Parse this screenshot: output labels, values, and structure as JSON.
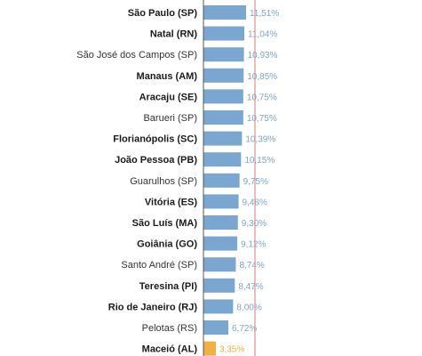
{
  "chart_data": {
    "type": "bar",
    "orientation": "horizontal",
    "categories": [
      "São Paulo (SP)",
      "Natal (RN)",
      "São José dos Campos (SP)",
      "Manaus (AM)",
      "Aracaju (SE)",
      "Barueri (SP)",
      "Florianópolis (SC)",
      "João Pessoa (PB)",
      "Guarulhos (SP)",
      "Vitória (ES)",
      "São Luís (MA)",
      "Goiânia (GO)",
      "Santo André (SP)",
      "Teresina (PI)",
      "Rio de Janeiro (RJ)",
      "Pelotas (RS)",
      "Maceió (AL)"
    ],
    "values": [
      11.51,
      11.04,
      10.93,
      10.85,
      10.75,
      10.75,
      10.39,
      10.15,
      9.75,
      9.48,
      9.3,
      9.12,
      8.74,
      8.47,
      8.0,
      6.72,
      3.35
    ],
    "value_labels": [
      "11,51%",
      "11,04%",
      "10,93%",
      "10,85%",
      "10,75%",
      "10,75%",
      "10,39%",
      "10,15%",
      "9,75%",
      "9,48%",
      "9,30%",
      "9,12%",
      "8,74%",
      "8,47%",
      "8,00%",
      "6,72%",
      "3,35%"
    ],
    "bold_categories": [
      "São Paulo (SP)",
      "Natal (RN)",
      "Manaus (AM)",
      "Aracaju (SE)",
      "Florianópolis (SC)",
      "João Pessoa (PB)",
      "Vitória (ES)",
      "São Luís (MA)",
      "Goiânia (GO)",
      "Teresina (PI)",
      "Rio de Janeiro (RJ)",
      "Maceió (AL)"
    ],
    "highlight_category": "Maceió (AL)",
    "colors": {
      "bar": "#7ba6cf",
      "highlight_bar": "#f0b044",
      "value_label": "#7ba6cf",
      "highlight_value_label": "#f0b044",
      "reference_line": "#e58d93",
      "axis_line": "#555555"
    },
    "xlim": [
      0,
      12
    ]
  }
}
